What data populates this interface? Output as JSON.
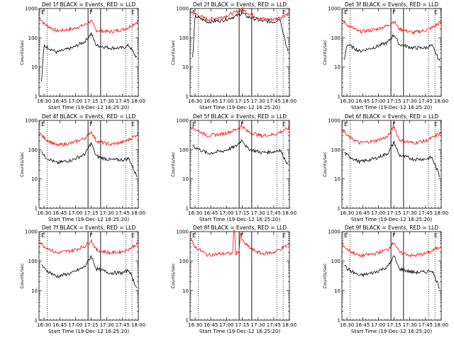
{
  "chart_data": [
    {
      "type": "line",
      "detector": "1f",
      "title": "Det 1f BLACK = Events, RED = LLD",
      "xlabel": "Start Time (19-Dec-12 16:25:20)",
      "ylabel": "Counts/sec",
      "yscale": "log",
      "ylim": [
        1,
        1000
      ],
      "xlim": [
        16.42,
        18.0
      ],
      "xticks": [
        "16:30",
        "16:45",
        "17:00",
        "17:15",
        "17:30",
        "17:45",
        "18:00"
      ],
      "yticks": [
        "1",
        "10",
        "100",
        "1000"
      ],
      "flags": [
        "E",
        "F",
        "E"
      ],
      "series": [
        {
          "name": "LLD",
          "color": "#ff0000",
          "x": [
            16.42,
            16.5,
            16.7,
            16.95,
            17.15,
            17.25,
            17.33,
            17.55,
            17.75,
            17.85,
            18.0
          ],
          "values": [
            520,
            300,
            170,
            200,
            280,
            380,
            180,
            160,
            190,
            230,
            380
          ]
        },
        {
          "name": "Events",
          "color": "#000000",
          "x": [
            16.46,
            16.5,
            16.7,
            16.95,
            17.15,
            17.25,
            17.33,
            17.55,
            17.75,
            17.85,
            17.98
          ],
          "values": [
            3,
            55,
            32,
            45,
            75,
            140,
            55,
            45,
            45,
            55,
            20
          ]
        }
      ],
      "vlines_solid": [
        17.2,
        17.4
      ],
      "vlines_dotted": [
        16.55,
        17.8,
        17.9
      ]
    },
    {
      "type": "line",
      "detector": "2f",
      "title": "Det 2f BLACK = Events, RED = LLD",
      "xlabel": "Start Time (19-Dec-12 16:25:20)",
      "ylabel": "Counts/sec",
      "yscale": "log",
      "ylim": [
        1,
        1000
      ],
      "xlim": [
        16.42,
        18.0
      ],
      "xticks": [
        "16:30",
        "16:45",
        "17:00",
        "17:15",
        "17:30",
        "17:45",
        "18:00"
      ],
      "yticks": [
        "1",
        "10",
        "100",
        "1000"
      ],
      "flags": [
        "E",
        "F",
        "E"
      ],
      "series": [
        {
          "name": "LLD",
          "color": "#ff0000",
          "x": [
            16.42,
            16.5,
            16.7,
            16.95,
            17.15,
            17.25,
            17.33,
            17.55,
            17.75,
            17.85,
            18.0
          ],
          "values": [
            800,
            650,
            420,
            520,
            750,
            950,
            720,
            450,
            420,
            500,
            700
          ]
        },
        {
          "name": "Events",
          "color": "#000000",
          "x": [
            16.46,
            16.5,
            16.7,
            16.95,
            17.15,
            17.25,
            17.33,
            17.55,
            17.75,
            17.85,
            17.98
          ],
          "values": [
            20,
            550,
            350,
            400,
            550,
            700,
            520,
            380,
            350,
            450,
            30
          ]
        }
      ],
      "vlines_solid": [
        17.2,
        17.4
      ],
      "vlines_dotted": [
        16.55,
        17.8,
        17.9
      ]
    },
    {
      "type": "line",
      "detector": "3f",
      "title": "Det 3f BLACK = Events, RED = LLD",
      "xlabel": "Start Time (19-Dec-12 16:25:20)",
      "ylabel": "Counts/sec",
      "yscale": "log",
      "ylim": [
        1,
        1000
      ],
      "xlim": [
        16.42,
        18.0
      ],
      "xticks": [
        "16:30",
        "16:45",
        "17:00",
        "17:15",
        "17:30",
        "17:45",
        "18:00"
      ],
      "yticks": [
        "1",
        "10",
        "100",
        "1000"
      ],
      "flags": [
        "E",
        "F",
        "E"
      ],
      "series": [
        {
          "name": "LLD",
          "color": "#ff0000",
          "x": [
            16.42,
            16.5,
            16.7,
            16.95,
            17.15,
            17.25,
            17.33,
            17.55,
            17.75,
            17.85,
            18.0
          ],
          "values": [
            420,
            280,
            160,
            190,
            260,
            370,
            200,
            150,
            180,
            220,
            350
          ]
        },
        {
          "name": "Events",
          "color": "#000000",
          "x": [
            16.46,
            16.5,
            16.7,
            16.95,
            17.15,
            17.25,
            17.33,
            17.55,
            17.75,
            17.85,
            17.98
          ],
          "values": [
            18,
            60,
            35,
            48,
            70,
            130,
            60,
            45,
            45,
            55,
            15
          ]
        }
      ],
      "vlines_solid": [
        17.2,
        17.4
      ],
      "vlines_dotted": [
        16.55,
        17.8,
        17.9
      ]
    },
    {
      "type": "line",
      "detector": "4f",
      "title": "Det 4f BLACK = Events, RED = LLD",
      "xlabel": "Start Time (19-Dec-12 16:25:20)",
      "ylabel": "Counts/sec",
      "yscale": "log",
      "ylim": [
        1,
        1000
      ],
      "xlim": [
        16.42,
        18.0
      ],
      "xticks": [
        "16:30",
        "16:45",
        "17:00",
        "17:15",
        "17:30",
        "17:45",
        "18:00"
      ],
      "yticks": [
        "1",
        "10",
        "100",
        "1000"
      ],
      "flags": [
        "E",
        "F",
        "E"
      ],
      "series": [
        {
          "name": "LLD",
          "color": "#ff0000",
          "x": [
            16.42,
            16.5,
            16.7,
            16.95,
            17.15,
            17.25,
            17.33,
            17.55,
            17.75,
            17.85,
            18.0
          ],
          "values": [
            400,
            250,
            140,
            170,
            250,
            420,
            200,
            150,
            180,
            220,
            350
          ]
        },
        {
          "name": "Events",
          "color": "#000000",
          "x": [
            16.46,
            16.5,
            16.7,
            16.95,
            17.15,
            17.25,
            17.33,
            17.55,
            17.75,
            17.85,
            17.98
          ],
          "values": [
            100,
            60,
            35,
            45,
            70,
            170,
            60,
            45,
            45,
            50,
            12
          ]
        }
      ],
      "vlines_solid": [
        17.2,
        17.4
      ],
      "vlines_dotted": [
        16.55,
        17.8,
        17.9
      ]
    },
    {
      "type": "line",
      "detector": "5f",
      "title": "Det 5f BLACK = Events, RED = LLD",
      "xlabel": "Start Time (19-Dec-12 16:25:20)",
      "ylabel": "Counts/sec",
      "yscale": "log",
      "ylim": [
        1,
        1000
      ],
      "xlim": [
        16.42,
        18.0
      ],
      "xticks": [
        "16:30",
        "16:45",
        "17:00",
        "17:15",
        "17:30",
        "17:45",
        "18:00"
      ],
      "yticks": [
        "1",
        "10",
        "100",
        "1000"
      ],
      "flags": [
        "E",
        "F",
        "E"
      ],
      "series": [
        {
          "name": "LLD",
          "color": "#ff0000",
          "x": [
            16.42,
            16.5,
            16.7,
            16.95,
            17.15,
            17.25,
            17.33,
            17.55,
            17.75,
            17.85,
            18.0
          ],
          "values": [
            650,
            500,
            300,
            350,
            480,
            650,
            420,
            300,
            330,
            400,
            550
          ]
        },
        {
          "name": "Events",
          "color": "#000000",
          "x": [
            16.46,
            16.5,
            16.7,
            16.95,
            17.15,
            17.25,
            17.33,
            17.55,
            17.75,
            17.85,
            17.98
          ],
          "values": [
            150,
            120,
            75,
            90,
            130,
            220,
            110,
            80,
            85,
            100,
            30
          ]
        }
      ],
      "vlines_solid": [
        17.2,
        17.4
      ],
      "vlines_dotted": [
        16.55,
        17.8,
        17.9
      ]
    },
    {
      "type": "line",
      "detector": "6f",
      "title": "Det 6f BLACK = Events, RED = LLD",
      "xlabel": "Start Time (19-Dec-12 16:25:20)",
      "ylabel": "Counts/sec",
      "yscale": "log",
      "ylim": [
        1,
        1000
      ],
      "xlim": [
        16.42,
        18.0
      ],
      "xticks": [
        "16:30",
        "16:45",
        "17:00",
        "17:15",
        "17:30",
        "17:45",
        "18:00"
      ],
      "yticks": [
        "1",
        "10",
        "100",
        "1000"
      ],
      "flags": [
        "E",
        "F",
        "E"
      ],
      "series": [
        {
          "name": "LLD",
          "color": "#ff0000",
          "x": [
            16.42,
            16.5,
            16.7,
            16.95,
            17.15,
            17.25,
            17.33,
            17.55,
            17.75,
            17.85,
            18.0
          ],
          "values": [
            550,
            300,
            170,
            200,
            280,
            650,
            220,
            170,
            200,
            250,
            380
          ]
        },
        {
          "name": "Events",
          "color": "#000000",
          "x": [
            16.46,
            16.5,
            16.7,
            16.95,
            17.15,
            17.25,
            17.33,
            17.55,
            17.75,
            17.85,
            17.98
          ],
          "values": [
            80,
            65,
            38,
            50,
            75,
            180,
            65,
            48,
            48,
            55,
            12
          ]
        }
      ],
      "vlines_solid": [
        17.2,
        17.4
      ],
      "vlines_dotted": [
        16.55,
        17.8,
        17.9
      ]
    },
    {
      "type": "line",
      "detector": "7f",
      "title": "Det 7f BLACK = Events, RED = LLD",
      "xlabel": "Start Time (19-Dec-12 16:25:20)",
      "ylabel": "Counts/sec",
      "yscale": "log",
      "ylim": [
        1,
        1000
      ],
      "xlim": [
        16.42,
        18.0
      ],
      "xticks": [
        "16:30",
        "16:45",
        "17:00",
        "17:15",
        "17:30",
        "17:45",
        "18:00"
      ],
      "yticks": [
        "1",
        "10",
        "100",
        "1000"
      ],
      "flags": [
        "E",
        "F",
        "E"
      ],
      "series": [
        {
          "name": "LLD",
          "color": "#ff0000",
          "x": [
            16.42,
            16.5,
            16.7,
            16.95,
            17.15,
            17.25,
            17.33,
            17.55,
            17.75,
            17.85,
            18.0
          ],
          "values": [
            480,
            320,
            190,
            230,
            320,
            520,
            240,
            190,
            210,
            260,
            400
          ]
        },
        {
          "name": "Events",
          "color": "#000000",
          "x": [
            16.46,
            16.5,
            16.7,
            16.95,
            17.15,
            17.25,
            17.33,
            17.55,
            17.75,
            17.85,
            17.98
          ],
          "values": [
            80,
            55,
            30,
            40,
            65,
            150,
            55,
            40,
            40,
            50,
            12
          ]
        }
      ],
      "vlines_solid": [
        17.2,
        17.4
      ],
      "vlines_dotted": [
        16.55,
        17.8,
        17.9
      ]
    },
    {
      "type": "line",
      "detector": "8f",
      "title": "Det 8f BLACK = Events, RED = LLD",
      "xlabel": "Start Time (19-Dec-12 16:25:20)",
      "ylabel": "Counts/sec",
      "yscale": "log",
      "ylim": [
        1,
        1000
      ],
      "xlim": [
        16.42,
        18.0
      ],
      "xticks": [
        "16:30",
        "16:45",
        "17:00",
        "17:15",
        "17:30",
        "17:45",
        "18:00"
      ],
      "yticks": [
        "1",
        "10",
        "100",
        "1000"
      ],
      "flags": [
        "E",
        "F",
        "E"
      ],
      "series": [
        {
          "name": "LLD",
          "color": "#ff0000",
          "x": [
            16.42,
            16.5,
            16.7,
            16.95,
            17.1,
            17.11,
            17.13,
            17.14,
            17.2,
            17.22,
            17.25,
            17.3,
            17.4,
            17.55,
            17.75,
            17.85,
            18.0
          ],
          "values": [
            600,
            300,
            160,
            180,
            180,
            1000,
            1000,
            180,
            220,
            900,
            500,
            380,
            250,
            180,
            200,
            250,
            380
          ]
        },
        {
          "name": "Events",
          "color": "#000000",
          "x": [],
          "values": []
        }
      ],
      "vlines_solid": [
        17.2,
        17.4
      ],
      "vlines_dotted": [
        16.55,
        17.8,
        17.9
      ]
    },
    {
      "type": "line",
      "detector": "9f",
      "title": "Det 9f BLACK = Events, RED = LLD",
      "xlabel": "Start Time (19-Dec-12 16:25:20)",
      "ylabel": "Counts/sec",
      "yscale": "log",
      "ylim": [
        1,
        1000
      ],
      "xlim": [
        16.42,
        18.0
      ],
      "xticks": [
        "16:30",
        "16:45",
        "17:00",
        "17:15",
        "17:30",
        "17:45",
        "18:00"
      ],
      "yticks": [
        "1",
        "10",
        "100",
        "1000"
      ],
      "flags": [
        "E",
        "F",
        "E"
      ],
      "series": [
        {
          "name": "LLD",
          "color": "#ff0000",
          "x": [
            16.42,
            16.5,
            16.7,
            16.95,
            17.15,
            17.25,
            17.33,
            17.55,
            17.75,
            17.85,
            18.0
          ],
          "values": [
            400,
            250,
            150,
            180,
            250,
            450,
            200,
            150,
            180,
            220,
            330
          ]
        },
        {
          "name": "Events",
          "color": "#000000",
          "x": [
            16.46,
            16.5,
            16.7,
            16.95,
            17.15,
            17.25,
            17.33,
            17.55,
            17.75,
            17.85,
            17.98
          ],
          "values": [
            80,
            55,
            32,
            42,
            65,
            150,
            55,
            42,
            42,
            50,
            12
          ]
        }
      ],
      "vlines_solid": [
        17.2,
        17.4
      ],
      "vlines_dotted": [
        16.55,
        17.8,
        17.9
      ]
    }
  ]
}
